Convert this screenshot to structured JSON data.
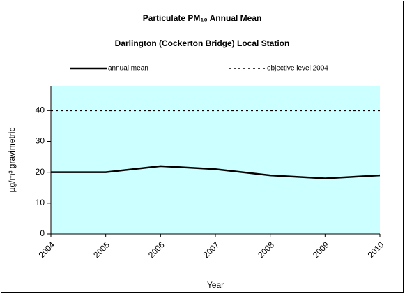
{
  "chart_data": {
    "type": "line",
    "title": "Particulate PM₁₀ Annual Mean",
    "subtitle": "Darlington (Cockerton Bridge) Local Station",
    "x_label": "Year",
    "y_label": "µg/m³ gravimetric",
    "x": [
      2004,
      2005,
      2006,
      2007,
      2008,
      2009,
      2010
    ],
    "series": [
      {
        "name": "annual mean",
        "color": "#000000",
        "style": "solid",
        "values": [
          20,
          20,
          22,
          21,
          19,
          18,
          19
        ]
      },
      {
        "name": "objective level 2004",
        "color": "#000000",
        "style": "dotted",
        "values": [
          40,
          40,
          40,
          40,
          40,
          40,
          40
        ]
      }
    ],
    "xlim": [
      2004,
      2010
    ],
    "xticks": [
      2004,
      2005,
      2006,
      2007,
      2008,
      2009,
      2010
    ],
    "ylim": [
      0,
      48
    ],
    "yticks": [
      0,
      10,
      20,
      30,
      40
    ],
    "plot_background": "#ccffff",
    "legend": "top"
  }
}
